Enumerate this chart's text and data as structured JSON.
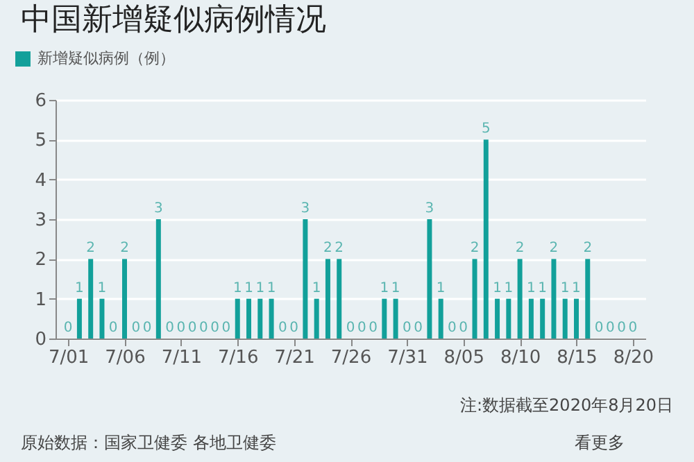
{
  "chart_data": {
    "type": "bar",
    "title": "中国新增疑似病例情况",
    "categories": [
      "7/01",
      null,
      null,
      null,
      null,
      "7/06",
      null,
      null,
      null,
      null,
      "7/11",
      null,
      null,
      null,
      null,
      "7/16",
      null,
      null,
      null,
      null,
      "7/21",
      null,
      null,
      null,
      null,
      "7/26",
      null,
      null,
      null,
      null,
      "7/31",
      null,
      null,
      null,
      null,
      "8/05",
      null,
      null,
      null,
      null,
      "8/10",
      null,
      null,
      null,
      null,
      "8/15",
      null,
      null,
      null,
      null,
      "8/20"
    ],
    "series": [
      {
        "name": "新增疑似病例（例）",
        "color": "#12a09a",
        "values": [
          0,
          1,
          2,
          1,
          0,
          2,
          0,
          0,
          3,
          0,
          0,
          0,
          0,
          0,
          0,
          1,
          1,
          1,
          1,
          0,
          0,
          3,
          1,
          2,
          2,
          0,
          0,
          0,
          1,
          1,
          0,
          0,
          3,
          1,
          0,
          0,
          2,
          5,
          1,
          1,
          2,
          1,
          1,
          2,
          1,
          1,
          2,
          0,
          0,
          0,
          0
        ]
      }
    ],
    "ylim": [
      0,
      6
    ],
    "yticks": [
      0,
      1,
      2,
      3,
      4,
      5,
      6
    ],
    "grid": "y",
    "legend": "top left",
    "data_labels": true,
    "annotations": [
      "注:数据截至2020年8月20日",
      "原始数据：国家卫健委 各地卫健委",
      "看更多"
    ]
  }
}
